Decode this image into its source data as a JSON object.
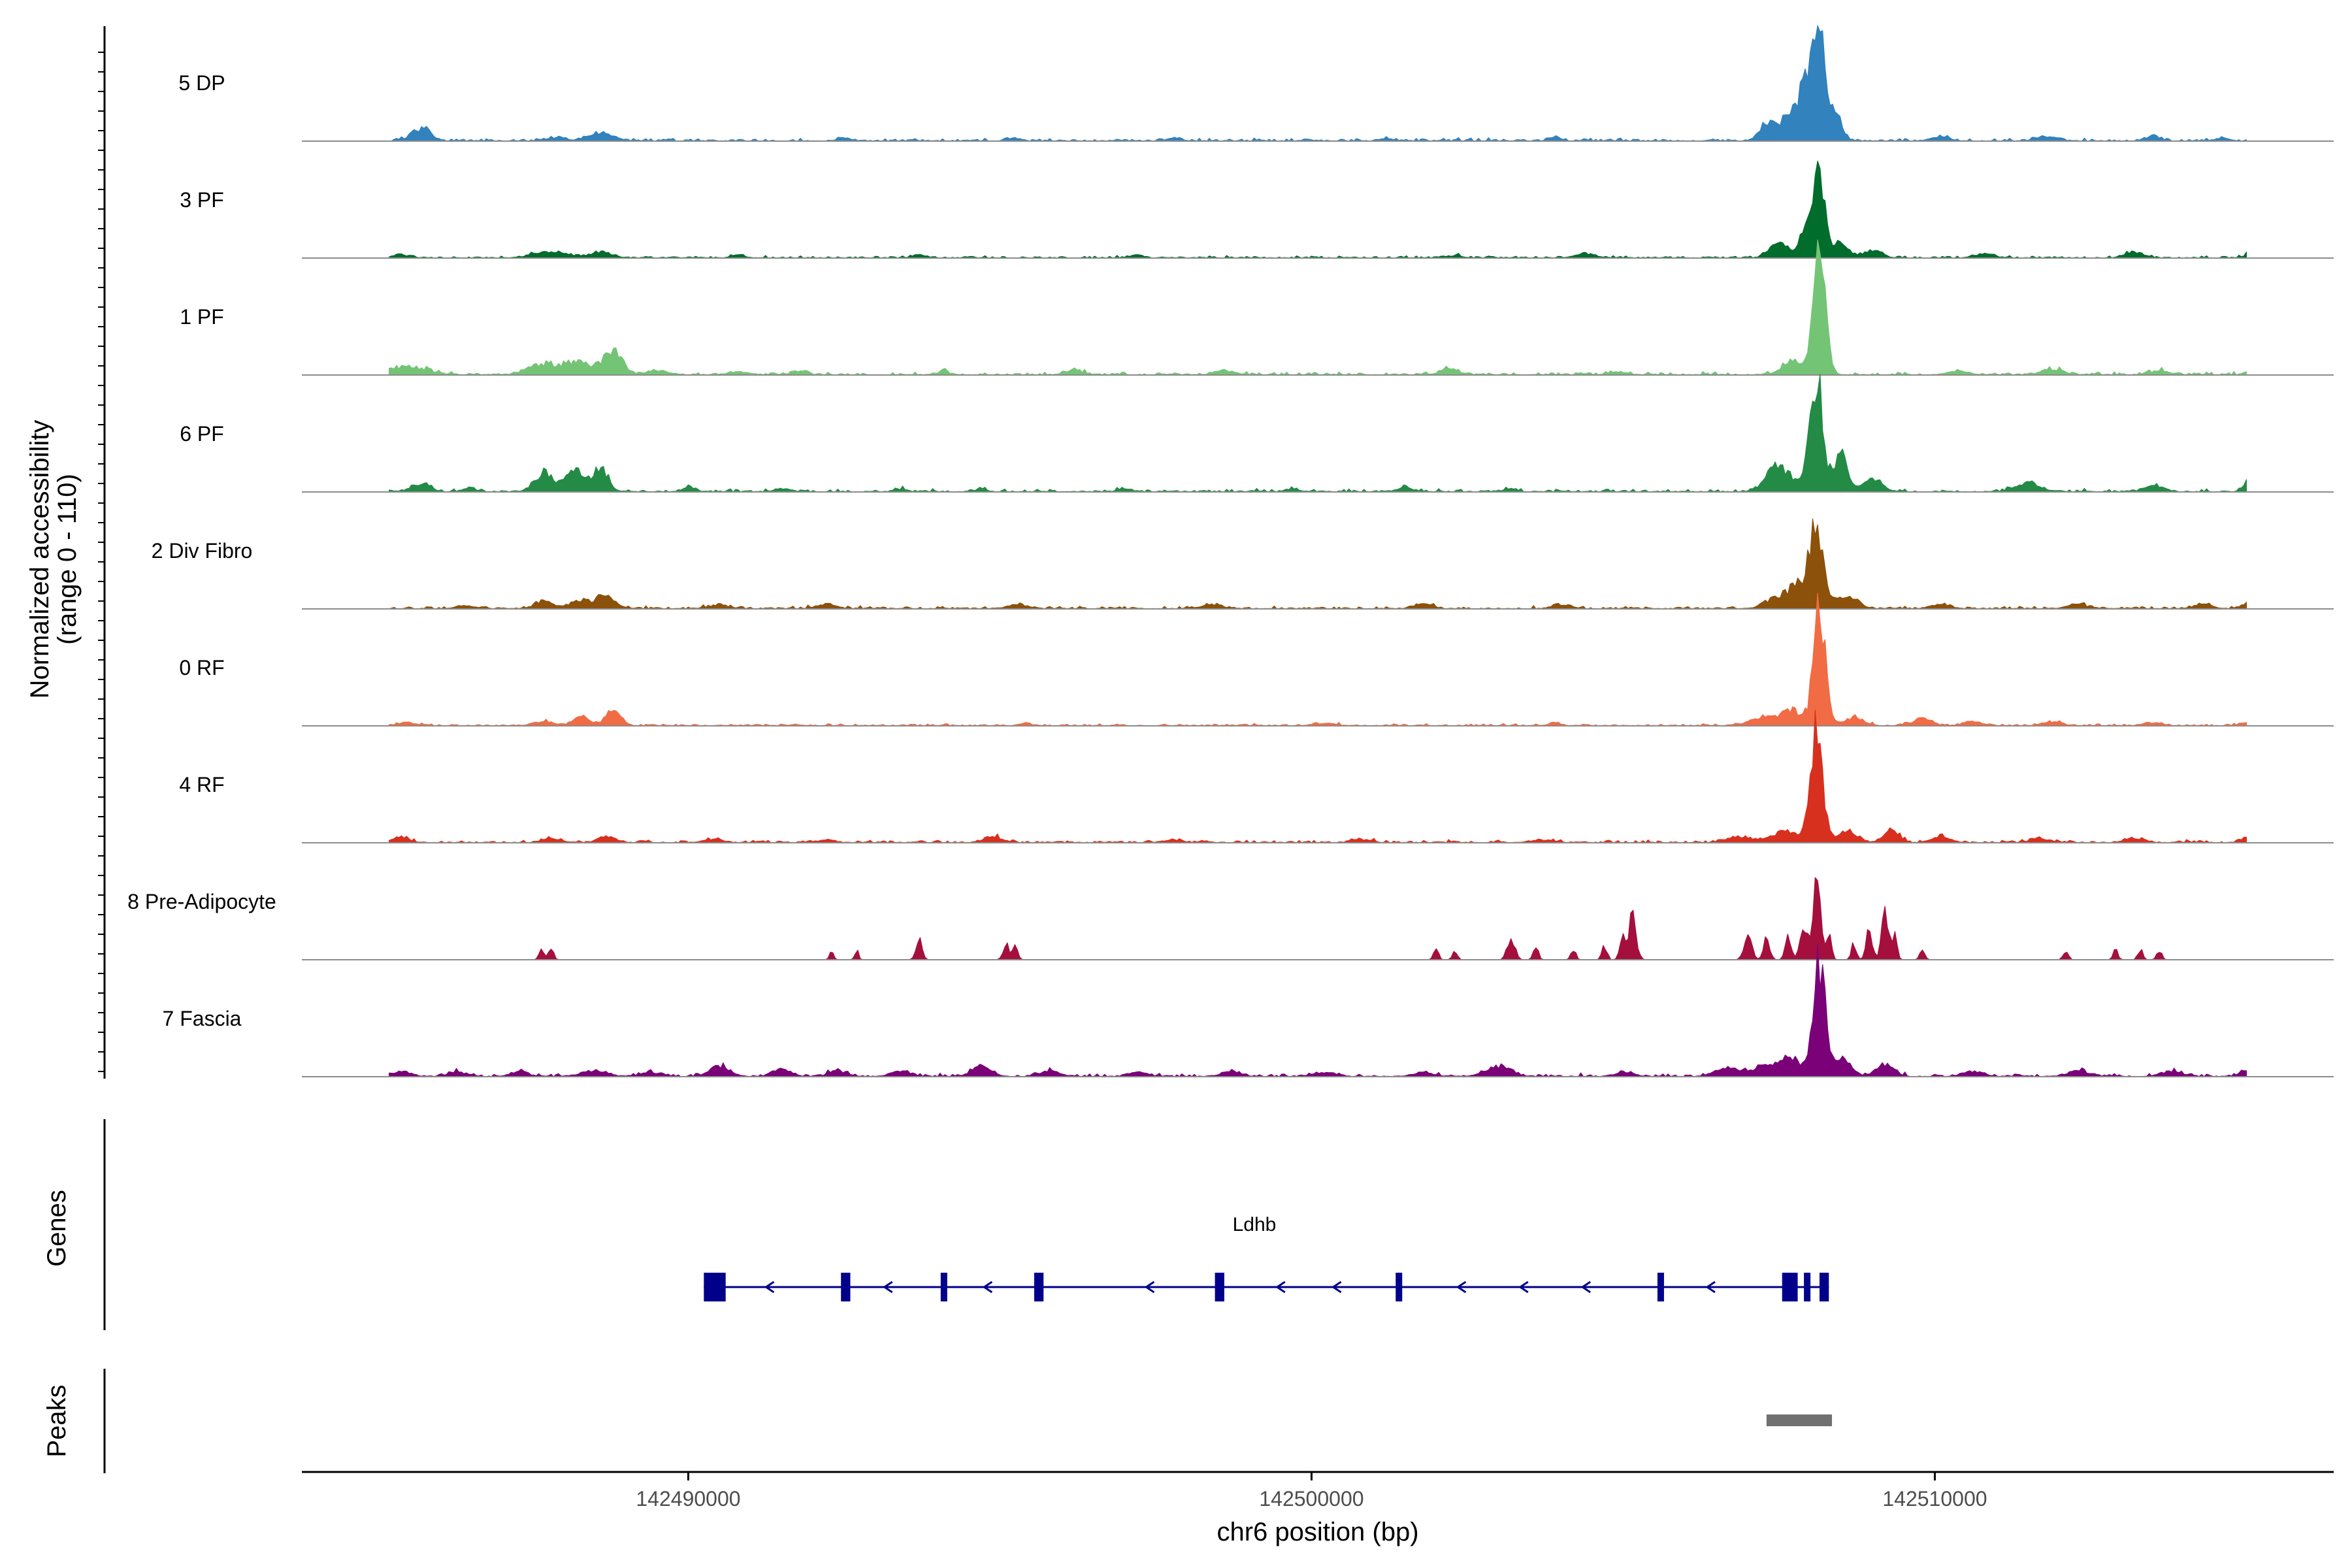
{
  "chart_data": {
    "type": "area",
    "title": "",
    "ylabel": [
      "Normalized accessibility",
      "(range 0 - 110)"
    ],
    "xlabel": "chr6 position (bp)",
    "x_range": [
      142483800,
      142516400
    ],
    "y_range": [
      0,
      110
    ],
    "x_ticks": [
      142490000,
      142500000,
      142510000
    ],
    "x_tick_labels": [
      "142490000",
      "142500000",
      "142510000"
    ],
    "tracks": [
      {
        "name": "5 DP",
        "color": "#3182bd",
        "peaks": [
          [
            142485700,
            9,
            150
          ],
          [
            142487900,
            3,
            120
          ],
          [
            142488400,
            3,
            120
          ],
          [
            142488700,
            5,
            150
          ],
          [
            142492500,
            2,
            100
          ],
          [
            142495200,
            2,
            100
          ],
          [
            142497800,
            2,
            100
          ],
          [
            142501200,
            2,
            100
          ],
          [
            142503900,
            2,
            100
          ],
          [
            142507300,
            12,
            120
          ],
          [
            142507700,
            20,
            150
          ],
          [
            142507950,
            40,
            100
          ],
          [
            142508150,
            85,
            90
          ],
          [
            142508400,
            20,
            100
          ],
          [
            142510100,
            3,
            150
          ],
          [
            142511800,
            3,
            150
          ],
          [
            142513500,
            4,
            100
          ],
          [
            142514600,
            2,
            100
          ]
        ],
        "noise_level": 2.0
      },
      {
        "name": "3 PF",
        "color": "#006d2c",
        "peaks": [
          [
            142485400,
            2,
            150
          ],
          [
            142487800,
            5,
            250
          ],
          [
            142488600,
            4,
            180
          ],
          [
            142490800,
            2,
            100
          ],
          [
            142493700,
            2,
            100
          ],
          [
            142497200,
            2,
            100
          ],
          [
            142502300,
            2,
            100
          ],
          [
            142504400,
            3,
            150
          ],
          [
            142507500,
            10,
            150
          ],
          [
            142507950,
            25,
            100
          ],
          [
            142508150,
            62,
            90
          ],
          [
            142508500,
            10,
            120
          ],
          [
            142509000,
            5,
            150
          ],
          [
            142510800,
            3,
            150
          ],
          [
            142513200,
            4,
            150
          ],
          [
            142515100,
            4,
            100
          ]
        ],
        "noise_level": 1.5
      },
      {
        "name": "1 PF",
        "color": "#74c476",
        "peaks": [
          [
            142485500,
            6,
            300
          ],
          [
            142487600,
            6,
            200
          ],
          [
            142488200,
            9,
            300
          ],
          [
            142488800,
            15,
            150
          ],
          [
            142489500,
            3,
            150
          ],
          [
            142490800,
            2,
            150
          ],
          [
            142491800,
            2,
            120
          ],
          [
            142494100,
            2,
            120
          ],
          [
            142496200,
            3,
            150
          ],
          [
            142498600,
            3,
            150
          ],
          [
            142502200,
            4,
            150
          ],
          [
            142504900,
            2,
            150
          ],
          [
            142507700,
            10,
            150
          ],
          [
            142508150,
            80,
            100
          ],
          [
            142510400,
            3,
            150
          ],
          [
            142511900,
            4,
            150
          ],
          [
            142513600,
            3,
            150
          ],
          [
            142515100,
            3,
            100
          ]
        ],
        "noise_level": 2.0
      },
      {
        "name": "6 PF",
        "color": "#238b45",
        "peaks": [
          [
            142485000,
            4,
            120
          ],
          [
            142485700,
            6,
            150
          ],
          [
            142486500,
            3,
            100
          ],
          [
            142487700,
            14,
            150
          ],
          [
            142488200,
            16,
            150
          ],
          [
            142488600,
            16,
            120
          ],
          [
            142490000,
            3,
            100
          ],
          [
            142491500,
            2,
            120
          ],
          [
            142493400,
            2,
            100
          ],
          [
            142494700,
            2,
            100
          ],
          [
            142497000,
            2,
            100
          ],
          [
            142499700,
            2,
            100
          ],
          [
            142501500,
            3,
            100
          ],
          [
            142503200,
            2,
            100
          ],
          [
            142507500,
            18,
            200
          ],
          [
            142508100,
            80,
            110
          ],
          [
            142508500,
            25,
            100
          ],
          [
            142509000,
            9,
            150
          ],
          [
            142511500,
            6,
            200
          ],
          [
            142513500,
            4,
            150
          ],
          [
            142515000,
            7,
            60
          ]
        ],
        "noise_level": 2.0
      },
      {
        "name": "2 Div Fibro",
        "color": "#8c510a",
        "peaks": [
          [
            142486400,
            2,
            150
          ],
          [
            142487700,
            5,
            150
          ],
          [
            142488300,
            5,
            200
          ],
          [
            142488700,
            8,
            150
          ],
          [
            142490500,
            3,
            150
          ],
          [
            142492200,
            3,
            150
          ],
          [
            142495300,
            3,
            150
          ],
          [
            142498400,
            3,
            150
          ],
          [
            142501800,
            3,
            150
          ],
          [
            142504000,
            3,
            150
          ],
          [
            142507500,
            8,
            200
          ],
          [
            142507800,
            12,
            150
          ],
          [
            142508100,
            55,
            120
          ],
          [
            142508600,
            10,
            150
          ],
          [
            142510100,
            3,
            150
          ],
          [
            142512300,
            3,
            150
          ],
          [
            142514300,
            3,
            150
          ],
          [
            142515000,
            3,
            100
          ]
        ],
        "noise_level": 1.8
      },
      {
        "name": "0 RF",
        "color": "#f16c44",
        "peaks": [
          [
            142485500,
            2,
            150
          ],
          [
            142487700,
            3,
            150
          ],
          [
            142488300,
            6,
            150
          ],
          [
            142488800,
            10,
            120
          ],
          [
            142495400,
            2,
            100
          ],
          [
            142500200,
            2,
            150
          ],
          [
            142503900,
            2,
            100
          ],
          [
            142507300,
            6,
            250
          ],
          [
            142507700,
            10,
            150
          ],
          [
            142508150,
            80,
            100
          ],
          [
            142508700,
            6,
            150
          ],
          [
            142509800,
            5,
            150
          ],
          [
            142510600,
            3,
            150
          ],
          [
            142511900,
            3,
            150
          ],
          [
            142513500,
            2,
            150
          ],
          [
            142515000,
            2,
            100
          ]
        ],
        "noise_level": 1.5
      },
      {
        "name": "4 RF",
        "color": "#d7301f",
        "peaks": [
          [
            142485400,
            3,
            150
          ],
          [
            142487800,
            3,
            150
          ],
          [
            142488700,
            4,
            150
          ],
          [
            142490400,
            2,
            150
          ],
          [
            142492200,
            2,
            150
          ],
          [
            142494900,
            4,
            150
          ],
          [
            142497800,
            2,
            150
          ],
          [
            142500800,
            2,
            150
          ],
          [
            142503700,
            2,
            150
          ],
          [
            142506900,
            4,
            200
          ],
          [
            142507600,
            8,
            200
          ],
          [
            142508100,
            80,
            100
          ],
          [
            142508600,
            8,
            150
          ],
          [
            142509300,
            10,
            120
          ],
          [
            142510100,
            4,
            150
          ],
          [
            142511700,
            3,
            150
          ],
          [
            142513200,
            3,
            150
          ],
          [
            142515000,
            3,
            100
          ]
        ],
        "noise_level": 1.8
      },
      {
        "name": "8 Pre-Adipocyte",
        "color": "#a50f3d",
        "peaks": [
          [
            142487650,
            8,
            40
          ],
          [
            142487800,
            8,
            40
          ],
          [
            142492300,
            7,
            30
          ],
          [
            142492700,
            7,
            30
          ],
          [
            142493700,
            14,
            50
          ],
          [
            142495100,
            12,
            50
          ],
          [
            142495250,
            10,
            40
          ],
          [
            142502000,
            7,
            40
          ],
          [
            142502300,
            7,
            40
          ],
          [
            142503200,
            16,
            60
          ],
          [
            142503600,
            10,
            40
          ],
          [
            142504200,
            7,
            40
          ],
          [
            142504700,
            10,
            40
          ],
          [
            142505000,
            14,
            50
          ],
          [
            142505150,
            30,
            60
          ],
          [
            142507000,
            18,
            60
          ],
          [
            142507300,
            16,
            50
          ],
          [
            142507650,
            16,
            50
          ],
          [
            142507900,
            25,
            60
          ],
          [
            142508100,
            60,
            60
          ],
          [
            142508300,
            20,
            40
          ],
          [
            142508700,
            12,
            40
          ],
          [
            142508950,
            22,
            50
          ],
          [
            142509200,
            40,
            50
          ],
          [
            142509350,
            18,
            40
          ],
          [
            142509800,
            8,
            40
          ],
          [
            142512100,
            7,
            40
          ],
          [
            142512900,
            7,
            40
          ],
          [
            142513300,
            7,
            40
          ],
          [
            142513600,
            7,
            40
          ]
        ],
        "noise_level": 0.0
      },
      {
        "name": "7 Fascia",
        "color": "#7a0177",
        "peaks": [
          [
            142485400,
            3,
            150
          ],
          [
            142486300,
            3,
            150
          ],
          [
            142487300,
            3,
            150
          ],
          [
            142488500,
            4,
            200
          ],
          [
            142489400,
            3,
            150
          ],
          [
            142490500,
            8,
            150
          ],
          [
            142491500,
            5,
            150
          ],
          [
            142492400,
            4,
            150
          ],
          [
            142493400,
            4,
            150
          ],
          [
            142494700,
            7,
            150
          ],
          [
            142495800,
            4,
            150
          ],
          [
            142497200,
            3,
            150
          ],
          [
            142498700,
            4,
            150
          ],
          [
            142500200,
            3,
            150
          ],
          [
            142501800,
            3,
            150
          ],
          [
            142503000,
            7,
            200
          ],
          [
            142505000,
            3,
            150
          ],
          [
            142506700,
            6,
            200
          ],
          [
            142507300,
            8,
            200
          ],
          [
            142507700,
            12,
            150
          ],
          [
            142508150,
            80,
            100
          ],
          [
            142508500,
            12,
            150
          ],
          [
            142509200,
            8,
            150
          ],
          [
            142510600,
            4,
            150
          ],
          [
            142512300,
            4,
            150
          ],
          [
            142513800,
            4,
            150
          ],
          [
            142515000,
            4,
            100
          ]
        ],
        "noise_level": 2.0
      }
    ],
    "gene": {
      "name": "Ldhb",
      "strand": "-",
      "start": 142490250,
      "end": 142508300,
      "color": "#00008b",
      "exons": [
        [
          142490250,
          142490600
        ],
        [
          142492450,
          142492600
        ],
        [
          142494050,
          142494150
        ],
        [
          142495550,
          142495700
        ],
        [
          142498450,
          142498600
        ],
        [
          142501350,
          142501450
        ],
        [
          142505550,
          142505650
        ],
        [
          142507550,
          142507800
        ],
        [
          142507900,
          142508000
        ],
        [
          142508150,
          142508300
        ]
      ],
      "arrows": [
        142491300,
        142493200,
        142494800,
        142497400,
        142499500,
        142500400,
        142502400,
        142503400,
        142504400,
        142506400
      ]
    },
    "peaks_track": {
      "color": "#707070",
      "regions": [
        [
          142507300,
          142508350
        ]
      ]
    },
    "panel_labels": {
      "genes": "Genes",
      "peaks": "Peaks"
    }
  }
}
